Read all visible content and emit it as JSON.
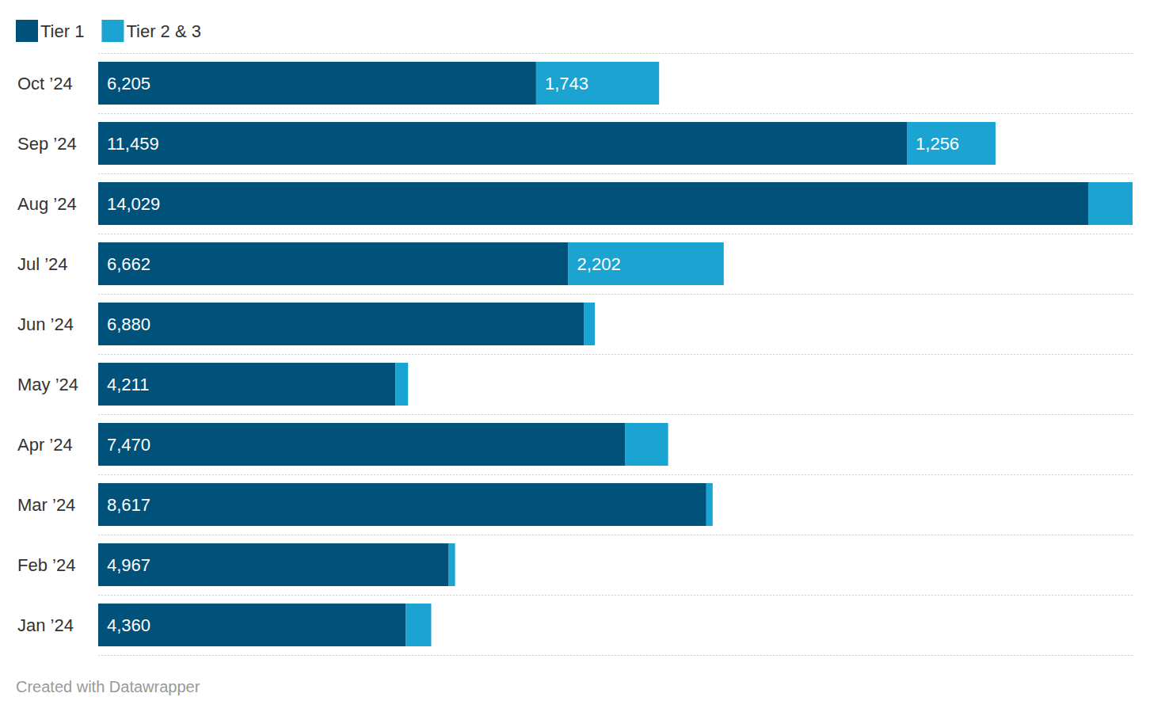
{
  "chart_data": {
    "type": "bar",
    "orientation": "horizontal",
    "stacked": true,
    "data_labels": true,
    "tick_labels": "y",
    "grid": true,
    "legend": "top-left",
    "caption": "Created with Datawrapper",
    "categories": [
      "Oct ’24",
      "Sep ’24",
      "Aug ’24",
      "Jul ’24",
      "Jun ’24",
      "May ’24",
      "Apr ’24",
      "Mar ’24",
      "Feb ’24",
      "Jan ’24"
    ],
    "xlim": [
      0,
      14657
    ],
    "series": [
      {
        "name": "Tier 1",
        "color": "#00527a",
        "values": [
          6205,
          11459,
          14029,
          6662,
          6880,
          4211,
          7470,
          8617,
          4967,
          4360
        ],
        "value_labels": [
          "6,205",
          "11,459",
          "14,029",
          "6,662",
          "6,880",
          "4,211",
          "7,470",
          "8,617",
          "4,967",
          "4,360"
        ]
      },
      {
        "name": "Tier 2 & 3",
        "color": "#1ba3d1",
        "values": [
          1743,
          1256,
          628,
          2202,
          157,
          180,
          606,
          90,
          90,
          359
        ],
        "value_labels": [
          "1,743",
          "1,256",
          null,
          "2,202",
          null,
          null,
          null,
          null,
          null,
          null
        ]
      }
    ]
  }
}
